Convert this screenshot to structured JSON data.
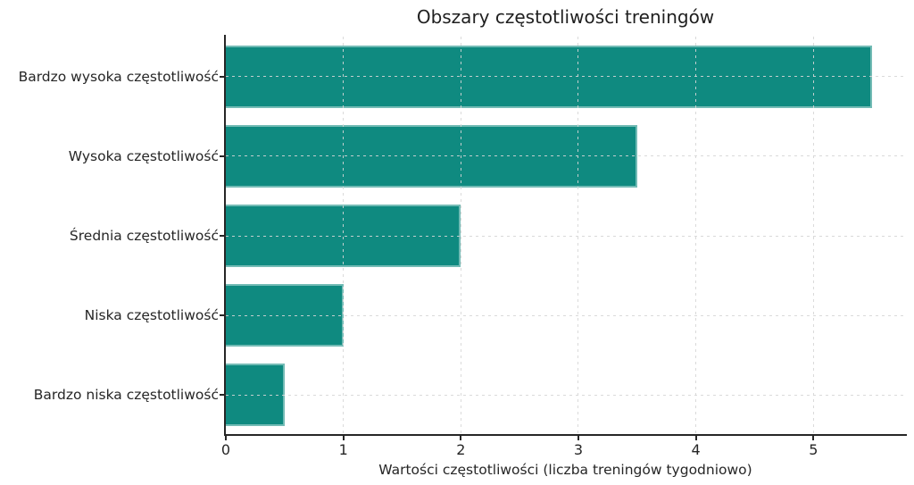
{
  "chart_data": {
    "type": "bar",
    "orientation": "horizontal",
    "title": "Obszary częstotliwości treningów",
    "xlabel": "Wartości częstotliwości (liczba treningów tygodniowo)",
    "ylabel": "",
    "categories": [
      "Bardzo wysoka częstotliwość",
      "Wysoka częstotliwość",
      "Średnia częstotliwość",
      "Niska częstotliwość",
      "Bardzo niska częstotliwość"
    ],
    "values": [
      5.5,
      3.5,
      2.0,
      1.0,
      0.5
    ],
    "xticks": [
      0,
      1,
      2,
      3,
      4,
      5
    ],
    "xlim": [
      0,
      5.78
    ],
    "grid": true,
    "grid_style": "dashed",
    "legend": "none",
    "bar_color": "#0f8a80",
    "bar_edge_color": "rgba(255,255,255,0.42)",
    "grid_color": "#d6d6d6",
    "spine_color": "#262626",
    "text_color": "#262626"
  }
}
